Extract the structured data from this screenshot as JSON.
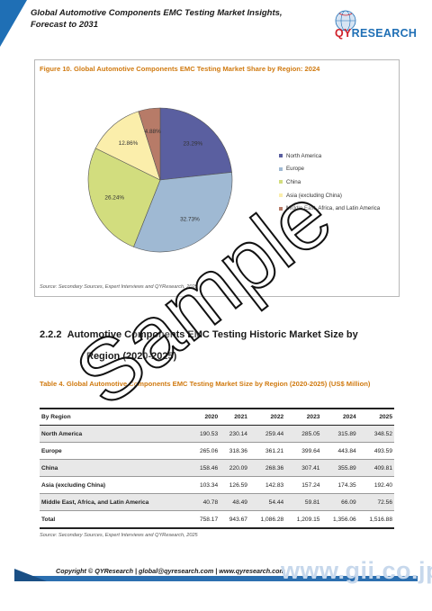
{
  "header": {
    "title": "Global Automotive Components EMC Testing Market Insights, Forecast to 2031",
    "logo_text_q": "QY",
    "logo_text_rest": "RESEARCH"
  },
  "figure": {
    "caption": "Figure 10.   Global Automotive Components EMC Testing Market Share by Region: 2024",
    "source": "Source: Secondary Sources, Expert Interviews and QYResearch, 2025"
  },
  "chart_data": {
    "type": "pie",
    "title": "Global Automotive Components EMC Testing Market Share by Region: 2024",
    "categories": [
      "North America",
      "Europe",
      "China",
      "Asia (excluding China)",
      "Middle East, Africa, and Latin America"
    ],
    "values": [
      23.29,
      32.73,
      26.24,
      12.86,
      4.88
    ],
    "labels": [
      "23.29%",
      "32.73%",
      "26.24%",
      "12.86%",
      "4.88%"
    ],
    "colors": [
      "#5a5fa0",
      "#9fb9d3",
      "#d2dd7e",
      "#fbeeab",
      "#b77b68"
    ],
    "legend_position": "right"
  },
  "section": {
    "number": "2.2.2",
    "title_line1": "Automotive Components EMC Testing Historic Market Size by",
    "title_line2": "Region (2020-2025)"
  },
  "table": {
    "caption": "Table 4.   Global Automotive Components EMC Testing Market Size by Region (2020-2025) (US$ Million)",
    "headers": [
      "By Region",
      "2020",
      "2021",
      "2022",
      "2023",
      "2024",
      "2025"
    ],
    "rows": [
      [
        "North America",
        "190.53",
        "230.14",
        "259.44",
        "285.05",
        "315.89",
        "348.52"
      ],
      [
        "Europe",
        "265.06",
        "318.36",
        "361.21",
        "399.64",
        "443.84",
        "493.59"
      ],
      [
        "China",
        "158.46",
        "220.09",
        "268.36",
        "307.41",
        "355.89",
        "409.81"
      ],
      [
        "Asia (excluding China)",
        "103.34",
        "126.59",
        "142.83",
        "157.24",
        "174.35",
        "192.40"
      ],
      [
        "Middle East, Africa, and Latin America",
        "40.78",
        "48.49",
        "54.44",
        "59.81",
        "66.09",
        "72.56"
      ],
      [
        "Total",
        "758.17",
        "943.67",
        "1,086.28",
        "1,209.15",
        "1,356.06",
        "1,516.88"
      ]
    ],
    "source": "Source: Secondary Sources, Expert Interviews and QYResearch, 2025"
  },
  "footer": {
    "text": "Copyright © QYResearch | global@qyresearch.com | www.qyresearch.com"
  },
  "watermark": {
    "sample": "Sample",
    "site": "www.gii.co.jp"
  }
}
